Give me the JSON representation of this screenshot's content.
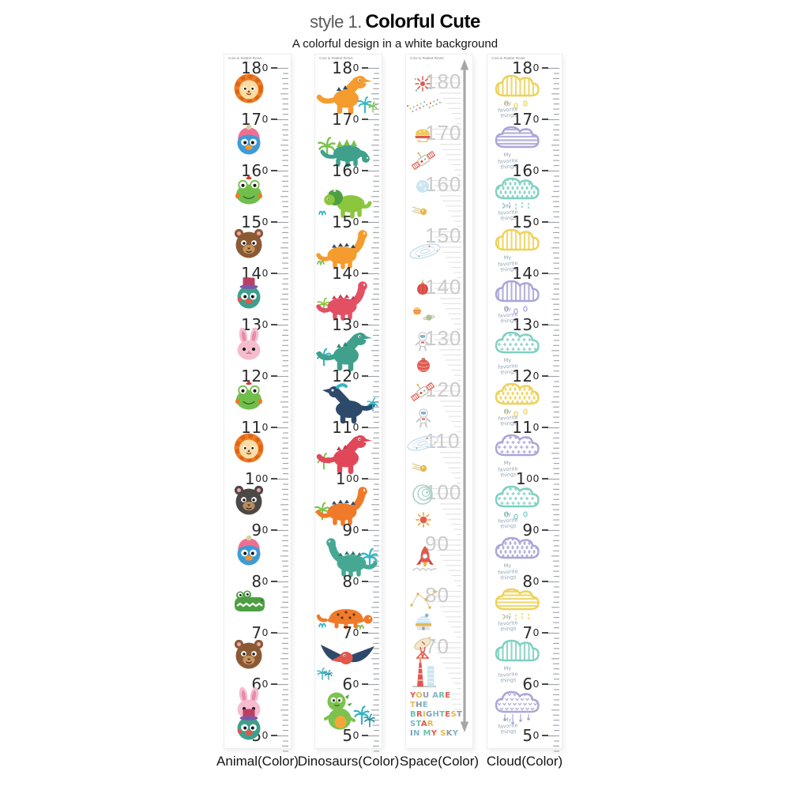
{
  "header": {
    "style_label": "style 1.",
    "title": "Colorful Cute",
    "subtitle": "A colorful design in a white background"
  },
  "brand": "Cow & Rabbit Rews",
  "colors": {
    "ruler_tick": "#9FA5AA",
    "ruler_number": "#2B2B2B",
    "space_number": "#CBCBCB",
    "space_tick": "#E3E3E3",
    "arrow_gray": "#A6A6A6",
    "caption_gray_blue": "#93A6B7",
    "cloud_yellow": "#EDD25B",
    "cloud_purple": "#ABA5D8",
    "cloud_teal": "#7FD0C2",
    "animal_orange": "#ED7B27",
    "dino_orange": "#F59C2F",
    "dino_teal": "#3FA08C",
    "dino_red": "#E25064",
    "dino_navy": "#2E4A6B",
    "quote_palette": [
      "#E2574C",
      "#E5B94E",
      "#8A9AA5",
      "#7FB4CC",
      "#6FBFAE"
    ]
  },
  "strips": [
    {
      "id": "animal",
      "label": "Animal(Color)",
      "rows": [
        {
          "value": 180,
          "icon": "lion"
        },
        {
          "value": 170,
          "icon": "bird-blue-beanie"
        },
        {
          "value": 160,
          "icon": "frog"
        },
        {
          "value": 150,
          "icon": "bear-brown"
        },
        {
          "value": 140,
          "icon": "bird-teal-tophat"
        },
        {
          "value": 130,
          "icon": "rabbit"
        },
        {
          "value": 120,
          "icon": "frog"
        },
        {
          "value": 110,
          "icon": "lion"
        },
        {
          "value": 100,
          "icon": "bear-black"
        },
        {
          "value": 90,
          "icon": "bird-blue-beanie"
        },
        {
          "value": 80,
          "icon": "crocodile"
        },
        {
          "value": 70,
          "icon": "bear-brown"
        },
        {
          "value": 60,
          "icon": "rabbit"
        },
        {
          "value": 50,
          "icon": "bird-teal-tophat"
        }
      ]
    },
    {
      "id": "dinosaurs",
      "label": "Dinosaurs(Color)",
      "rows": [
        {
          "value": 180,
          "icon": "trex-orange"
        },
        {
          "value": 170,
          "icon": "stego-teal"
        },
        {
          "value": 160,
          "icon": "triceratops-green"
        },
        {
          "value": 150,
          "icon": "spikeback-orange"
        },
        {
          "value": 140,
          "icon": "bronto-red"
        },
        {
          "value": 130,
          "icon": "trex-teal"
        },
        {
          "value": 120,
          "icon": "parasaur-navy"
        },
        {
          "value": 110,
          "icon": "trex-red"
        },
        {
          "value": 100,
          "icon": "bronto-orange"
        },
        {
          "value": 90,
          "icon": "longneck-teal"
        },
        {
          "value": 80,
          "icon": "ankylo-orange"
        },
        {
          "value": 70,
          "icon": "pterodactyl-red"
        },
        {
          "value": 60,
          "icon": "dino-green"
        },
        {
          "value": 50,
          "icon": null
        }
      ]
    },
    {
      "id": "space",
      "label": "Space(Color)",
      "quote": [
        "YOU ARE",
        "THE",
        "BRIGHTEST",
        "STAR",
        "IN MY SKY"
      ],
      "rows": [
        {
          "value": 180,
          "icons": [
            "starburst",
            "confetti-trail"
          ]
        },
        {
          "value": 170,
          "icons": [
            "planet-burger",
            "satellite"
          ]
        },
        {
          "value": 160,
          "icons": [
            "asteroid",
            "comet"
          ]
        },
        {
          "value": 150,
          "icons": [
            "galaxy"
          ]
        },
        {
          "value": 140,
          "icons": [
            "lantern-planet",
            "mini-planets"
          ]
        },
        {
          "value": 130,
          "icons": [
            "astronaut",
            "planet-red"
          ]
        },
        {
          "value": 120,
          "icons": [
            "satellite",
            "astronaut"
          ]
        },
        {
          "value": 110,
          "icons": [
            "galaxy",
            "comet"
          ]
        },
        {
          "value": 100,
          "icons": [
            "swirl-galaxy",
            "sun"
          ]
        },
        {
          "value": 90,
          "icons": [
            "rocket-launch"
          ]
        },
        {
          "value": 80,
          "icons": [
            "constellation",
            "observatory"
          ]
        },
        {
          "value": 70,
          "icons": [
            "satellite-dish",
            "launch-towers"
          ]
        }
      ]
    },
    {
      "id": "cloud",
      "label": "Cloud(Color)",
      "rows": [
        {
          "value": 180,
          "cloud": {
            "color": "yellow",
            "pattern": "stripes-v",
            "rain": "drops"
          },
          "caption": "My favorite things"
        },
        {
          "value": 170,
          "cloud": {
            "color": "purple",
            "pattern": "stripes-h",
            "rain": null
          },
          "caption": "My favorite things"
        },
        {
          "value": 160,
          "cloud": {
            "color": "teal",
            "pattern": "dots",
            "rain": "lines"
          },
          "caption": "My favorite things"
        },
        {
          "value": 150,
          "cloud": {
            "color": "yellow",
            "pattern": "stripes-v",
            "rain": null
          },
          "caption": "My favorite things"
        },
        {
          "value": 140,
          "cloud": {
            "color": "purple",
            "pattern": "stripes-v",
            "rain": "drops"
          },
          "caption": "My favorite things"
        },
        {
          "value": 130,
          "cloud": {
            "color": "teal",
            "pattern": "plus",
            "rain": null
          },
          "caption": "My favorite things"
        },
        {
          "value": 120,
          "cloud": {
            "color": "yellow",
            "pattern": "dots",
            "rain": "drops"
          },
          "caption": "My favorite things"
        },
        {
          "value": 110,
          "cloud": {
            "color": "purple",
            "pattern": "plus",
            "rain": null
          },
          "caption": "My favorite things"
        },
        {
          "value": 100,
          "cloud": {
            "color": "teal",
            "pattern": "plus",
            "rain": "drops"
          },
          "caption": "My favorite things"
        },
        {
          "value": 90,
          "cloud": {
            "color": "purple",
            "pattern": "dots",
            "rain": null
          },
          "caption": "My favorite things"
        },
        {
          "value": 80,
          "cloud": {
            "color": "yellow",
            "pattern": "stripes-h",
            "rain": "lines"
          },
          "caption": "My favorite things"
        },
        {
          "value": 70,
          "cloud": {
            "color": "teal",
            "pattern": "stripes-v",
            "rain": null
          },
          "caption": "My favorite things"
        },
        {
          "value": 60,
          "cloud": {
            "color": "purple",
            "pattern": "hearts",
            "rain": "hang-drops"
          },
          "caption": "My favorite things"
        },
        {
          "value": 50,
          "cloud": null,
          "caption": null
        }
      ]
    }
  ]
}
